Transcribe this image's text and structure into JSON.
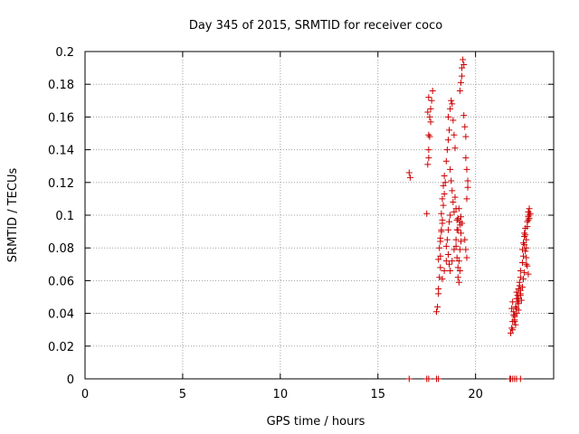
{
  "chart_data": {
    "type": "scatter",
    "title": "Day 345 of 2015, SRMTID for receiver coco",
    "xlabel": "GPS time / hours",
    "ylabel": "SRMTID / TECUs",
    "xlim": [
      0,
      24
    ],
    "ylim": [
      0,
      0.2
    ],
    "xticks": [
      0,
      5,
      10,
      15,
      20
    ],
    "xtick_labels": [
      "0",
      "5",
      "10",
      "15",
      "20"
    ],
    "yticks": [
      0,
      0.02,
      0.04,
      0.06,
      0.08,
      0.1,
      0.12,
      0.14,
      0.16,
      0.18,
      0.2
    ],
    "ytick_labels": [
      "0",
      "0.02",
      "0.04",
      "0.06",
      "0.08",
      "0.1",
      "0.12",
      "0.14",
      "0.16",
      "0.18",
      "0.2"
    ],
    "grid": true,
    "marker": "+",
    "marker_color": "#cc0000",
    "series": [
      {
        "name": "SRMTID",
        "x": [
          16.6,
          16.65,
          17.5,
          17.55,
          17.6,
          17.6,
          17.65,
          17.7,
          17.7,
          17.75,
          17.8,
          17.55,
          17.6,
          17.65,
          17.6,
          18.0,
          18.05,
          18.1,
          18.1,
          18.15,
          18.2,
          18.2,
          18.25,
          18.3,
          18.25,
          18.3,
          18.35,
          18.4,
          18.45,
          18.4,
          18.35,
          18.3,
          18.25,
          18.2,
          18.15,
          18.1,
          18.2,
          18.3,
          18.4,
          18.5,
          18.5,
          18.55,
          18.6,
          18.65,
          18.7,
          18.5,
          18.55,
          18.6,
          18.65,
          18.6,
          18.7,
          18.75,
          18.8,
          18.85,
          18.9,
          18.95,
          18.7,
          18.75,
          18.8,
          18.85,
          18.9,
          18.6,
          18.65,
          18.7,
          18.8,
          18.9,
          19.0,
          19.05,
          19.1,
          19.15,
          19.2,
          19.25,
          19.0,
          19.05,
          19.1,
          19.1,
          19.15,
          19.2,
          19.15,
          19.2,
          19.25,
          19.2,
          19.25,
          19.3,
          19.2,
          19.25,
          19.3,
          19.3,
          19.35,
          19.4,
          19.4,
          19.45,
          19.5,
          19.5,
          19.55,
          19.6,
          19.55,
          19.6,
          19.45,
          19.5,
          19.55,
          18.95,
          19.0,
          19.05,
          19.1,
          21.8,
          21.85,
          21.9,
          21.95,
          21.85,
          21.9,
          21.95,
          22.0,
          22.05,
          22.0,
          22.05,
          22.1,
          22.1,
          22.15,
          22.2,
          22.15,
          22.2,
          22.25,
          22.3,
          22.25,
          22.3,
          22.35,
          22.3,
          22.4,
          22.45,
          22.4,
          22.45,
          22.5,
          22.5,
          22.55,
          22.5,
          22.55,
          22.6,
          22.6,
          22.65,
          22.7,
          22.7,
          22.75,
          22.75,
          22.8,
          22.6,
          22.65,
          22.7,
          22.0,
          22.1,
          22.2,
          22.3,
          21.9,
          22.0,
          22.1,
          22.2,
          22.3,
          22.4,
          22.45,
          22.5,
          22.6,
          22.55,
          22.65,
          22.7,
          22.75,
          16.6,
          17.5,
          17.6,
          18.0,
          18.1,
          21.75,
          21.8,
          21.9,
          22.0,
          22.1,
          22.3
        ],
        "y": [
          0.126,
          0.123,
          0.101,
          0.131,
          0.135,
          0.14,
          0.148,
          0.157,
          0.165,
          0.17,
          0.176,
          0.163,
          0.172,
          0.16,
          0.149,
          0.041,
          0.044,
          0.052,
          0.055,
          0.062,
          0.075,
          0.084,
          0.09,
          0.095,
          0.101,
          0.11,
          0.118,
          0.124,
          0.12,
          0.113,
          0.106,
          0.097,
          0.091,
          0.086,
          0.08,
          0.073,
          0.068,
          0.061,
          0.066,
          0.072,
          0.081,
          0.085,
          0.091,
          0.096,
          0.1,
          0.133,
          0.14,
          0.146,
          0.152,
          0.16,
          0.165,
          0.17,
          0.168,
          0.158,
          0.149,
          0.141,
          0.128,
          0.121,
          0.115,
          0.108,
          0.102,
          0.076,
          0.07,
          0.066,
          0.072,
          0.079,
          0.085,
          0.091,
          0.098,
          0.104,
          0.096,
          0.089,
          0.081,
          0.074,
          0.068,
          0.062,
          0.059,
          0.066,
          0.072,
          0.079,
          0.084,
          0.094,
          0.099,
          0.095,
          0.176,
          0.181,
          0.185,
          0.19,
          0.195,
          0.192,
          0.161,
          0.154,
          0.148,
          0.135,
          0.128,
          0.121,
          0.11,
          0.117,
          0.085,
          0.079,
          0.074,
          0.111,
          0.104,
          0.097,
          0.091,
          0.028,
          0.031,
          0.035,
          0.039,
          0.043,
          0.047,
          0.041,
          0.036,
          0.033,
          0.039,
          0.044,
          0.049,
          0.053,
          0.047,
          0.042,
          0.051,
          0.055,
          0.059,
          0.062,
          0.057,
          0.052,
          0.048,
          0.066,
          0.071,
          0.075,
          0.079,
          0.083,
          0.087,
          0.082,
          0.078,
          0.089,
          0.092,
          0.085,
          0.08,
          0.096,
          0.099,
          0.102,
          0.104,
          0.098,
          0.101,
          0.074,
          0.069,
          0.064,
          0.038,
          0.043,
          0.049,
          0.054,
          0.03,
          0.035,
          0.04,
          0.046,
          0.051,
          0.056,
          0.061,
          0.065,
          0.07,
          0.088,
          0.093,
          0.097,
          0.1,
          0.0,
          0.0,
          0.0,
          0.0,
          0.0,
          0.0,
          0.0,
          0.0,
          0.0,
          0.0,
          0.0
        ]
      }
    ]
  }
}
